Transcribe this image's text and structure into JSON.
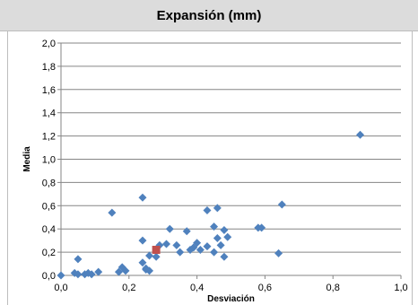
{
  "chart_data": {
    "type": "scatter",
    "title": "Expansión (mm)",
    "xlabel": "Desviación",
    "ylabel": "Media",
    "xlim": [
      0,
      1
    ],
    "ylim": [
      0,
      2
    ],
    "x_ticks": [
      "0,0",
      "0,2",
      "0,4",
      "0,6",
      "0,8",
      "1,0"
    ],
    "y_ticks": [
      "0,0",
      "0,2",
      "0,4",
      "0,6",
      "0,8",
      "1,0",
      "1,2",
      "1,4",
      "1,6",
      "1,8",
      "2,0"
    ],
    "grid": "horizontal",
    "legend": "none",
    "series": [
      {
        "color": "#4f81bd",
        "marker": "diamond",
        "points": [
          [
            0.0,
            0.0
          ],
          [
            0.04,
            0.02
          ],
          [
            0.05,
            0.01
          ],
          [
            0.05,
            0.14
          ],
          [
            0.07,
            0.01
          ],
          [
            0.08,
            0.02
          ],
          [
            0.09,
            0.01
          ],
          [
            0.11,
            0.03
          ],
          [
            0.15,
            0.54
          ],
          [
            0.17,
            0.03
          ],
          [
            0.18,
            0.07
          ],
          [
            0.19,
            0.04
          ],
          [
            0.24,
            0.67
          ],
          [
            0.24,
            0.11
          ],
          [
            0.24,
            0.3
          ],
          [
            0.25,
            0.06
          ],
          [
            0.25,
            0.05
          ],
          [
            0.26,
            0.04
          ],
          [
            0.26,
            0.17
          ],
          [
            0.28,
            0.16
          ],
          [
            0.28,
            0.21
          ],
          [
            0.29,
            0.26
          ],
          [
            0.31,
            0.27
          ],
          [
            0.32,
            0.4
          ],
          [
            0.34,
            0.26
          ],
          [
            0.35,
            0.2
          ],
          [
            0.37,
            0.38
          ],
          [
            0.38,
            0.22
          ],
          [
            0.39,
            0.24
          ],
          [
            0.4,
            0.28
          ],
          [
            0.41,
            0.22
          ],
          [
            0.43,
            0.25
          ],
          [
            0.43,
            0.56
          ],
          [
            0.45,
            0.42
          ],
          [
            0.45,
            0.2
          ],
          [
            0.46,
            0.32
          ],
          [
            0.46,
            0.58
          ],
          [
            0.47,
            0.26
          ],
          [
            0.48,
            0.16
          ],
          [
            0.48,
            0.39
          ],
          [
            0.49,
            0.33
          ],
          [
            0.58,
            0.41
          ],
          [
            0.59,
            0.41
          ],
          [
            0.64,
            0.19
          ],
          [
            0.65,
            0.61
          ],
          [
            0.88,
            1.21
          ]
        ]
      },
      {
        "color": "#c0504d",
        "marker": "square",
        "points": [
          [
            0.28,
            0.22
          ]
        ]
      }
    ]
  }
}
